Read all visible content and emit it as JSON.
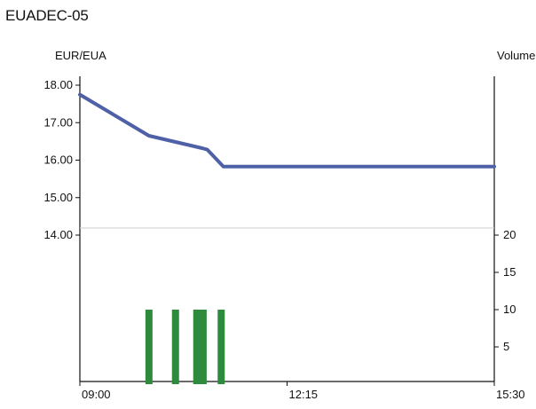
{
  "chart_data": {
    "type": "line",
    "title": "EUADEC-05",
    "price_axis": {
      "label": "EUR/EUA",
      "ticks": [
        "18.00",
        "17.00",
        "16.00",
        "15.00",
        "14.00"
      ],
      "ylim": [
        14.0,
        18.0
      ]
    },
    "volume_axis": {
      "label": "Volume",
      "ticks": [
        "20",
        "15",
        "10",
        "5"
      ],
      "ylim": [
        0,
        20
      ]
    },
    "x_axis": {
      "ticks": [
        "09:00",
        "12:15",
        "15:30"
      ],
      "xlim": [
        "09:00",
        "15:30"
      ]
    },
    "series": [
      {
        "kind": "line",
        "color": "#4f61a6",
        "points": [
          {
            "x": "09:00",
            "y": 17.75
          },
          {
            "x": "10:05",
            "y": 16.65
          },
          {
            "x": "10:55",
            "y": 16.32
          },
          {
            "x": "11:00",
            "y": 16.28
          },
          {
            "x": "11:15",
            "y": 15.83
          },
          {
            "x": "15:30",
            "y": 15.83
          }
        ]
      },
      {
        "kind": "bar",
        "color": "#2e8b3e",
        "bars": [
          {
            "x": "10:05",
            "y": 10
          },
          {
            "x": "10:30",
            "y": 10
          },
          {
            "x": "10:50",
            "y": 10
          },
          {
            "x": "10:56",
            "y": 10
          },
          {
            "x": "11:13",
            "y": 10
          }
        ]
      }
    ]
  }
}
